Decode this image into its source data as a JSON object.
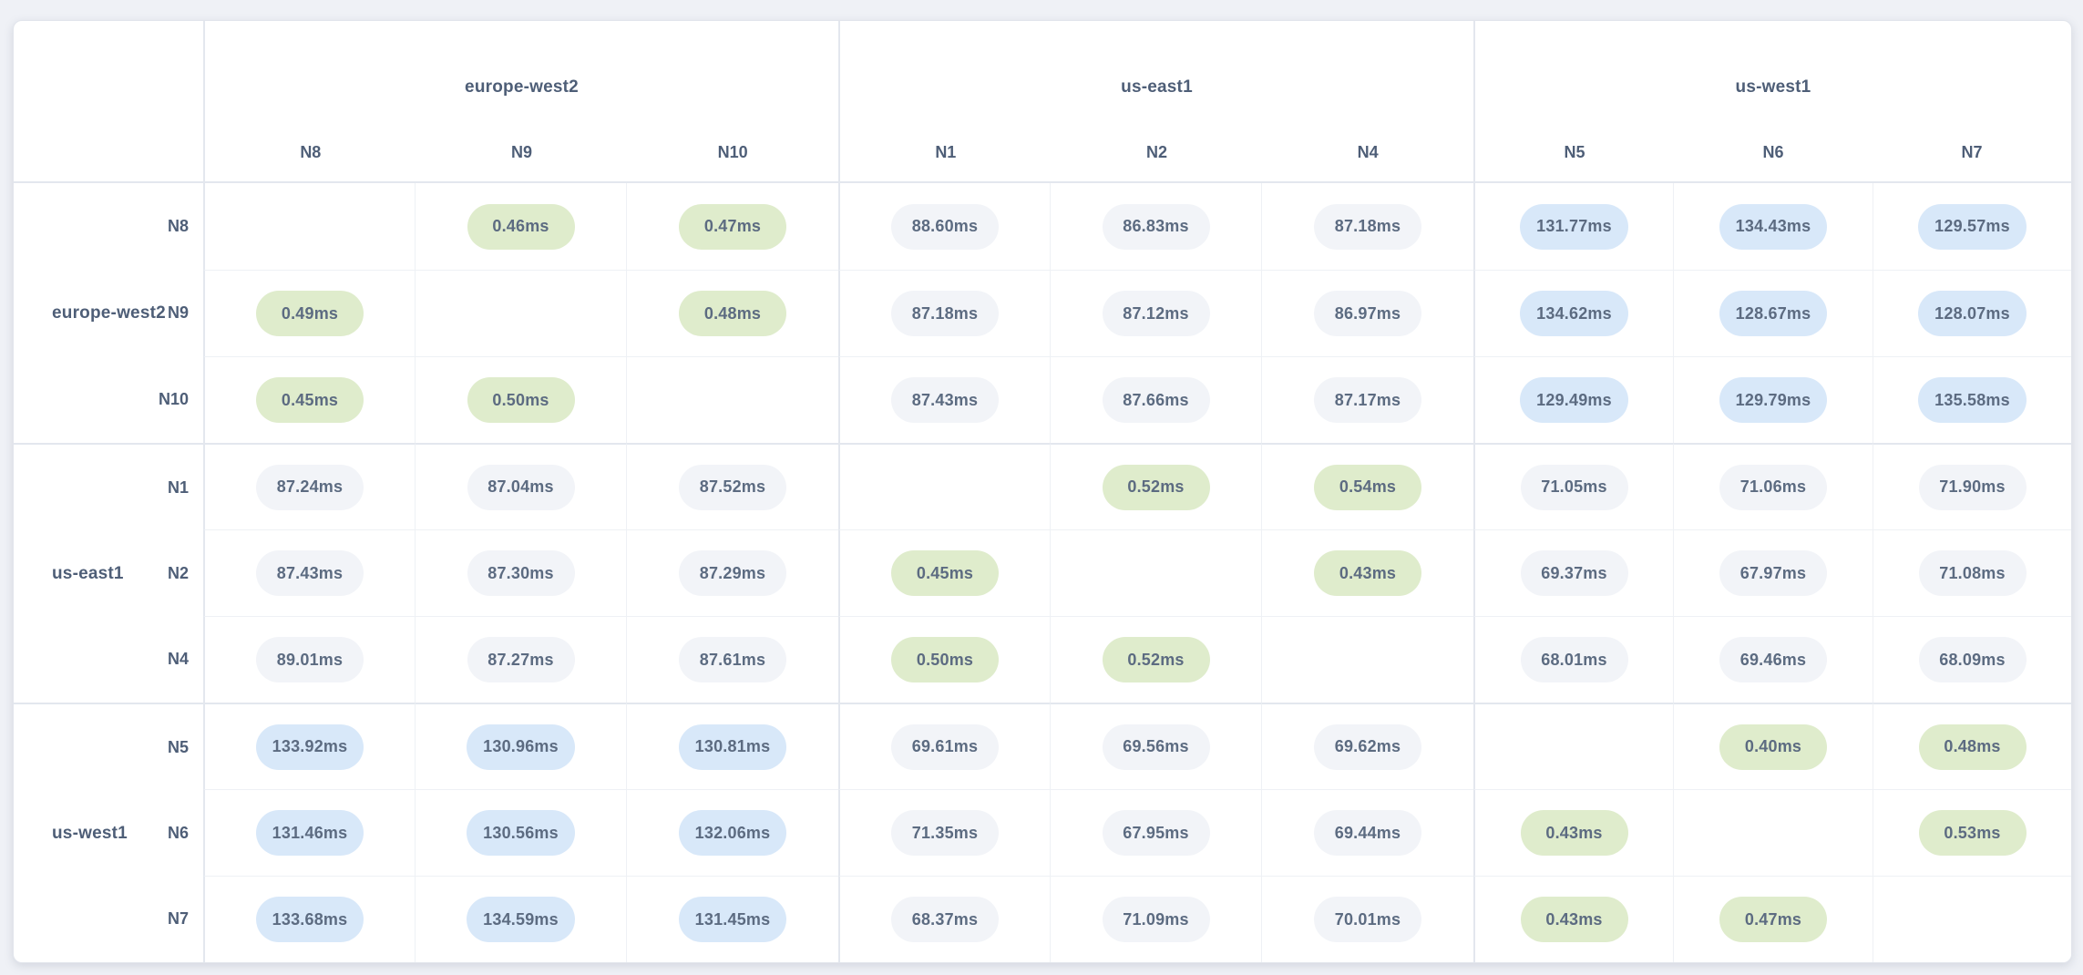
{
  "unit": "ms",
  "tier_colors": {
    "fast": "#dfeccc",
    "medium": "#f2f4f8",
    "slow": "#d8e8f9"
  },
  "matrix": {
    "regions": [
      {
        "name": "europe-west2",
        "nodes": [
          "N8",
          "N9",
          "N10"
        ]
      },
      {
        "name": "us-east1",
        "nodes": [
          "N1",
          "N2",
          "N4"
        ]
      },
      {
        "name": "us-west1",
        "nodes": [
          "N5",
          "N6",
          "N7"
        ]
      }
    ],
    "rows": [
      {
        "region": "europe-west2",
        "node": "N8",
        "values": [
          null,
          "0.46ms",
          "0.47ms",
          "88.60ms",
          "86.83ms",
          "87.18ms",
          "131.77ms",
          "134.43ms",
          "129.57ms"
        ]
      },
      {
        "region": "europe-west2",
        "node": "N9",
        "values": [
          "0.49ms",
          null,
          "0.48ms",
          "87.18ms",
          "87.12ms",
          "86.97ms",
          "134.62ms",
          "128.67ms",
          "128.07ms"
        ]
      },
      {
        "region": "europe-west2",
        "node": "N10",
        "values": [
          "0.45ms",
          "0.50ms",
          null,
          "87.43ms",
          "87.66ms",
          "87.17ms",
          "129.49ms",
          "129.79ms",
          "135.58ms"
        ]
      },
      {
        "region": "us-east1",
        "node": "N1",
        "values": [
          "87.24ms",
          "87.04ms",
          "87.52ms",
          null,
          "0.52ms",
          "0.54ms",
          "71.05ms",
          "71.06ms",
          "71.90ms"
        ]
      },
      {
        "region": "us-east1",
        "node": "N2",
        "values": [
          "87.43ms",
          "87.30ms",
          "87.29ms",
          "0.45ms",
          null,
          "0.43ms",
          "69.37ms",
          "67.97ms",
          "71.08ms"
        ]
      },
      {
        "region": "us-east1",
        "node": "N4",
        "values": [
          "89.01ms",
          "87.27ms",
          "87.61ms",
          "0.50ms",
          "0.52ms",
          null,
          "68.01ms",
          "69.46ms",
          "68.09ms"
        ]
      },
      {
        "region": "us-west1",
        "node": "N5",
        "values": [
          "133.92ms",
          "130.96ms",
          "130.81ms",
          "69.61ms",
          "69.56ms",
          "69.62ms",
          null,
          "0.40ms",
          "0.48ms"
        ]
      },
      {
        "region": "us-west1",
        "node": "N6",
        "values": [
          "131.46ms",
          "130.56ms",
          "132.06ms",
          "71.35ms",
          "67.95ms",
          "69.44ms",
          "0.43ms",
          null,
          "0.53ms"
        ]
      },
      {
        "region": "us-west1",
        "node": "N7",
        "values": [
          "133.68ms",
          "134.59ms",
          "131.45ms",
          "68.37ms",
          "71.09ms",
          "70.01ms",
          "0.43ms",
          "0.47ms",
          null
        ]
      }
    ],
    "tiers": [
      [
        "",
        "fast",
        "fast",
        "medium",
        "medium",
        "medium",
        "slow",
        "slow",
        "slow"
      ],
      [
        "fast",
        "",
        "fast",
        "medium",
        "medium",
        "medium",
        "slow",
        "slow",
        "slow"
      ],
      [
        "fast",
        "fast",
        "",
        "medium",
        "medium",
        "medium",
        "slow",
        "slow",
        "slow"
      ],
      [
        "medium",
        "medium",
        "medium",
        "",
        "fast",
        "fast",
        "medium",
        "medium",
        "medium"
      ],
      [
        "medium",
        "medium",
        "medium",
        "fast",
        "",
        "fast",
        "medium",
        "medium",
        "medium"
      ],
      [
        "medium",
        "medium",
        "medium",
        "fast",
        "fast",
        "",
        "medium",
        "medium",
        "medium"
      ],
      [
        "slow",
        "slow",
        "slow",
        "medium",
        "medium",
        "medium",
        "",
        "fast",
        "fast"
      ],
      [
        "slow",
        "slow",
        "slow",
        "medium",
        "medium",
        "medium",
        "fast",
        "",
        "fast"
      ],
      [
        "slow",
        "slow",
        "slow",
        "medium",
        "medium",
        "medium",
        "fast",
        "fast",
        ""
      ]
    ]
  },
  "chart_data": {
    "type": "heatmap",
    "title": "",
    "unit": "ms",
    "column_groups": [
      "europe-west2",
      "us-east1",
      "us-west1"
    ],
    "row_groups": [
      "europe-west2",
      "us-east1",
      "us-west1"
    ],
    "x_labels": [
      "N8",
      "N9",
      "N10",
      "N1",
      "N2",
      "N4",
      "N5",
      "N6",
      "N7"
    ],
    "y_labels": [
      "N8",
      "N9",
      "N10",
      "N1",
      "N2",
      "N4",
      "N5",
      "N6",
      "N7"
    ],
    "values_ms": [
      [
        null,
        0.46,
        0.47,
        88.6,
        86.83,
        87.18,
        131.77,
        134.43,
        129.57
      ],
      [
        0.49,
        null,
        0.48,
        87.18,
        87.12,
        86.97,
        134.62,
        128.67,
        128.07
      ],
      [
        0.45,
        0.5,
        null,
        87.43,
        87.66,
        87.17,
        129.49,
        129.79,
        135.58
      ],
      [
        87.24,
        87.04,
        87.52,
        null,
        0.52,
        0.54,
        71.05,
        71.06,
        71.9
      ],
      [
        87.43,
        87.3,
        87.29,
        0.45,
        null,
        0.43,
        69.37,
        67.97,
        71.08
      ],
      [
        89.01,
        87.27,
        87.61,
        0.5,
        0.52,
        null,
        68.01,
        69.46,
        68.09
      ],
      [
        133.92,
        130.96,
        130.81,
        69.61,
        69.56,
        69.62,
        null,
        0.4,
        0.48
      ],
      [
        131.46,
        130.56,
        132.06,
        71.35,
        67.95,
        69.44,
        0.43,
        null,
        0.53
      ],
      [
        133.68,
        134.59,
        131.45,
        68.37,
        71.09,
        70.01,
        0.43,
        0.47,
        null
      ]
    ],
    "legend_position": "none",
    "grid": true
  }
}
